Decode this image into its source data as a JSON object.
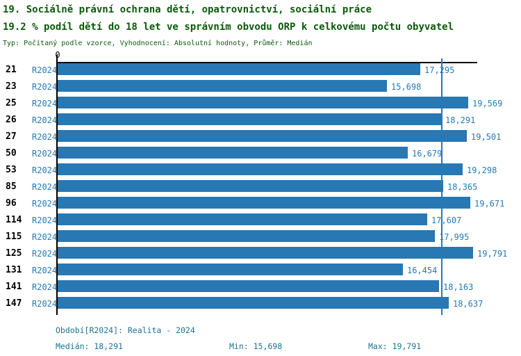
{
  "header": {
    "title_line1": "19. Sociálně právní ochrana dětí, opatrovnictví, sociální práce",
    "title_line2": "19.2 % podíl dětí do 18 let ve správním obvodu ORP k celkovému počtu obyvatel",
    "subtitle": "Typ: Počítaný podle vzorce, Vyhodnocení: Absolutní hodnoty, Průměr: Medián"
  },
  "chart_data": {
    "type": "bar",
    "orientation": "horizontal",
    "categories": [
      "21",
      "23",
      "25",
      "26",
      "27",
      "50",
      "53",
      "85",
      "96",
      "114",
      "115",
      "125",
      "131",
      "141",
      "147"
    ],
    "series_label": "R2024",
    "values": [
      17295,
      15698,
      19569,
      18291,
      19501,
      16679,
      19298,
      18365,
      19671,
      17607,
      17995,
      19791,
      16454,
      18163,
      18637
    ],
    "value_labels": [
      "17,295",
      "15,698",
      "19,569",
      "18,291",
      "19,501",
      "16,679",
      "19,298",
      "18,365",
      "19,671",
      "17,607",
      "17,995",
      "19,791",
      "16,454",
      "18,163",
      "18,637"
    ],
    "xlim": [
      0,
      20000
    ],
    "zero_tick_label": "0",
    "median_line_value": 18291,
    "grid": "single median gridline",
    "legend_position": "none",
    "bar_color": "#2878b4",
    "median_line_color": "#2878b4"
  },
  "footer": {
    "period": "Období[R2024]: Realita - 2024",
    "median": "Medián: 18,291",
    "min": "Min: 15,698",
    "max": "Max: 19,791"
  },
  "colors": {
    "title_text": "#0a5a0a",
    "category_text": "#000000",
    "series_text": "#2878b4",
    "value_text": "#2878b4",
    "footer_text": "#1b7291",
    "axis_line": "#000000"
  }
}
